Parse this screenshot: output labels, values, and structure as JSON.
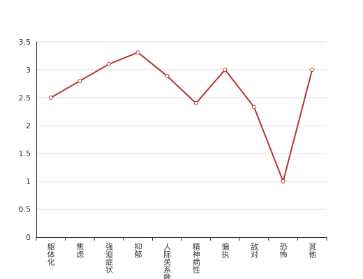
{
  "chart_data": {
    "type": "line",
    "categories": [
      "躯体化",
      "焦虑",
      "强迫症状",
      "抑郁",
      "人际关系敏感",
      "精神病性",
      "偏执",
      "敌对",
      "恐怖",
      "其他"
    ],
    "values": [
      2.5,
      2.8,
      3.1,
      3.31,
      2.89,
      2.4,
      3.0,
      2.33,
      1.0,
      3.0
    ],
    "color": "#b83232",
    "ylim": [
      0,
      3.5
    ],
    "yticks": [
      0,
      0.5,
      1,
      1.5,
      2,
      2.5,
      3,
      3.5
    ],
    "grid": true
  }
}
